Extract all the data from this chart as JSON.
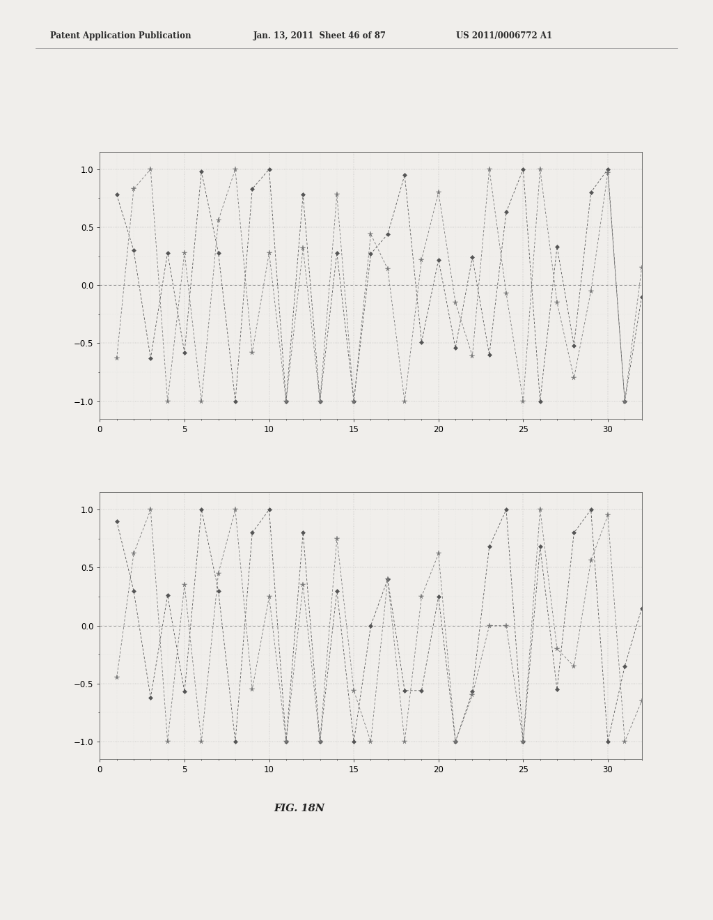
{
  "header_left": "Patent Application Publication",
  "header_mid": "Jan. 13, 2011  Sheet 46 of 87",
  "header_right": "US 2011/0006772 A1",
  "fig_label": "FIG. 18N",
  "background_color": "#f0eeeb",
  "plot_bg": "#f0eeeb",
  "line_color": "#555555",
  "xlim": [
    0,
    32
  ],
  "ylim": [
    -1.15,
    1.15
  ],
  "yticks": [
    -1,
    -0.5,
    0,
    0.5,
    1
  ],
  "xticks": [
    0,
    5,
    10,
    15,
    20,
    25,
    30
  ],
  "top_series1_x": [
    1,
    2,
    3,
    4,
    5,
    6,
    7,
    8,
    9,
    10,
    11,
    12,
    13,
    14,
    15,
    16,
    17,
    18,
    19,
    20,
    21,
    22,
    23,
    24,
    25,
    26,
    27,
    28,
    29,
    30,
    31,
    32
  ],
  "top_series1_y": [
    0.78,
    0.3,
    -0.63,
    0.28,
    -0.58,
    0.98,
    0.28,
    -1.0,
    0.83,
    1.0,
    -1.0,
    0.78,
    -1.0,
    0.28,
    -1.0,
    0.27,
    0.44,
    0.95,
    -0.49,
    0.22,
    -0.54,
    0.24,
    -0.6,
    0.63,
    1.0,
    -1.0,
    0.33,
    -0.52,
    0.8,
    1.0,
    -1.0,
    -0.1
  ],
  "top_series2_x": [
    1,
    2,
    3,
    4,
    5,
    6,
    7,
    8,
    9,
    10,
    11,
    12,
    13,
    14,
    15,
    16,
    17,
    18,
    19,
    20,
    21,
    22,
    23,
    24,
    25,
    26,
    27,
    28,
    29,
    30,
    31,
    32
  ],
  "top_series2_y": [
    -0.63,
    0.83,
    1.0,
    -1.0,
    0.28,
    -1.0,
    0.56,
    1.0,
    -0.58,
    0.28,
    -1.0,
    0.32,
    -1.0,
    0.78,
    -1.0,
    0.44,
    0.14,
    -1.0,
    0.22,
    0.8,
    -0.15,
    -0.61,
    1.0,
    -0.07,
    -1.0,
    1.0,
    -0.15,
    -0.8,
    -0.05,
    0.97,
    -1.0,
    0.15
  ],
  "bot_series1_x": [
    1,
    2,
    3,
    4,
    5,
    6,
    7,
    8,
    9,
    10,
    11,
    12,
    13,
    14,
    15,
    16,
    17,
    18,
    19,
    20,
    21,
    22,
    23,
    24,
    25,
    26,
    27,
    28,
    29,
    30,
    31,
    32
  ],
  "bot_series1_y": [
    0.9,
    0.3,
    -0.62,
    0.26,
    -0.57,
    1.0,
    0.3,
    -1.0,
    0.8,
    1.0,
    -1.0,
    0.8,
    -1.0,
    0.3,
    -1.0,
    0.0,
    0.4,
    -0.56,
    -0.56,
    0.25,
    -1.0,
    -0.57,
    0.68,
    1.0,
    -1.0,
    0.68,
    -0.55,
    0.8,
    1.0,
    -1.0,
    -0.35,
    0.15
  ],
  "bot_series2_x": [
    1,
    2,
    3,
    4,
    5,
    6,
    7,
    8,
    9,
    10,
    11,
    12,
    13,
    14,
    15,
    16,
    17,
    18,
    19,
    20,
    21,
    22,
    23,
    24,
    25,
    26,
    27,
    28,
    29,
    30,
    31,
    32
  ],
  "bot_series2_y": [
    -0.45,
    0.62,
    1.0,
    -1.0,
    0.35,
    -1.0,
    0.45,
    1.0,
    -0.55,
    0.25,
    -1.0,
    0.35,
    -1.0,
    0.75,
    -0.56,
    -1.0,
    0.4,
    -1.0,
    0.25,
    0.62,
    -1.0,
    -0.6,
    0.0,
    -0.0,
    -1.0,
    1.0,
    -0.2,
    -0.35,
    0.56,
    0.95,
    -1.0,
    -0.65
  ]
}
